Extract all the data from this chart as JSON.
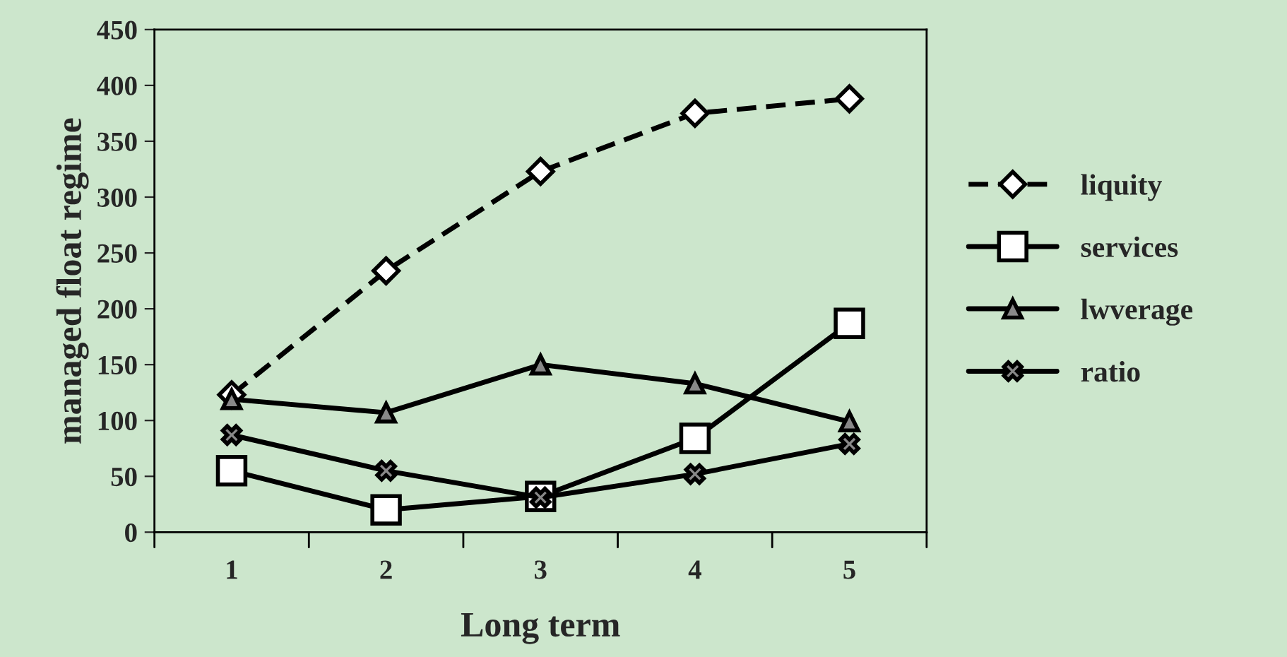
{
  "chart_data": {
    "type": "line",
    "xlabel": "Long term",
    "ylabel": "managed float regime",
    "categories": [
      "1",
      "2",
      "3",
      "4",
      "5"
    ],
    "series": [
      {
        "name": "liquity",
        "color": "#000000",
        "values": [
          123,
          234,
          323,
          375,
          388
        ],
        "marker": "diamond",
        "line_style": "dashed"
      },
      {
        "name": "services",
        "color": "#000000",
        "values": [
          55,
          20,
          32,
          84,
          187
        ],
        "marker": "square",
        "line_style": "solid"
      },
      {
        "name": "lwverage",
        "color": "#000000",
        "values": [
          119,
          107,
          150,
          133,
          99
        ],
        "marker": "triangle",
        "line_style": "solid"
      },
      {
        "name": "ratio",
        "color": "#000000",
        "values": [
          87,
          55,
          31,
          52,
          79
        ],
        "marker": "cross",
        "line_style": "solid"
      }
    ],
    "ylim": [
      0,
      450
    ],
    "yticks": [
      0,
      50,
      100,
      150,
      200,
      250,
      300,
      350,
      400,
      450
    ],
    "grid": false,
    "legend": "right"
  }
}
